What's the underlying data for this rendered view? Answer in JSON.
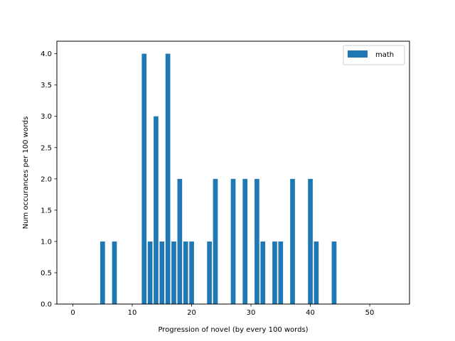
{
  "chart_data": {
    "type": "bar",
    "xlabel": "Progression of novel (by every 100 words)",
    "ylabel": "Num occurances per 100 words",
    "xlim": [
      -2.7,
      56.7
    ],
    "ylim": [
      0,
      4.2
    ],
    "xticks": [
      0,
      10,
      20,
      30,
      40,
      50
    ],
    "yticks": [
      0.0,
      0.5,
      1.0,
      1.5,
      2.0,
      2.5,
      3.0,
      3.5,
      4.0
    ],
    "ytick_labels": [
      "0.0",
      "0.5",
      "1.0",
      "1.5",
      "2.0",
      "2.5",
      "3.0",
      "3.5",
      "4.0"
    ],
    "bar_width": 0.8,
    "grid": false,
    "legend_position": "top-right",
    "series": [
      {
        "name": "math",
        "color": "#1f77b4",
        "x": [
          5,
          7,
          12,
          13,
          14,
          15,
          16,
          17,
          18,
          19,
          20,
          23,
          24,
          27,
          29,
          31,
          32,
          34,
          35,
          37,
          40,
          41,
          44
        ],
        "values": [
          1,
          1,
          4,
          1,
          3,
          1,
          4,
          1,
          2,
          1,
          1,
          1,
          2,
          2,
          2,
          2,
          1,
          1,
          1,
          2,
          2,
          1,
          1
        ]
      }
    ]
  }
}
